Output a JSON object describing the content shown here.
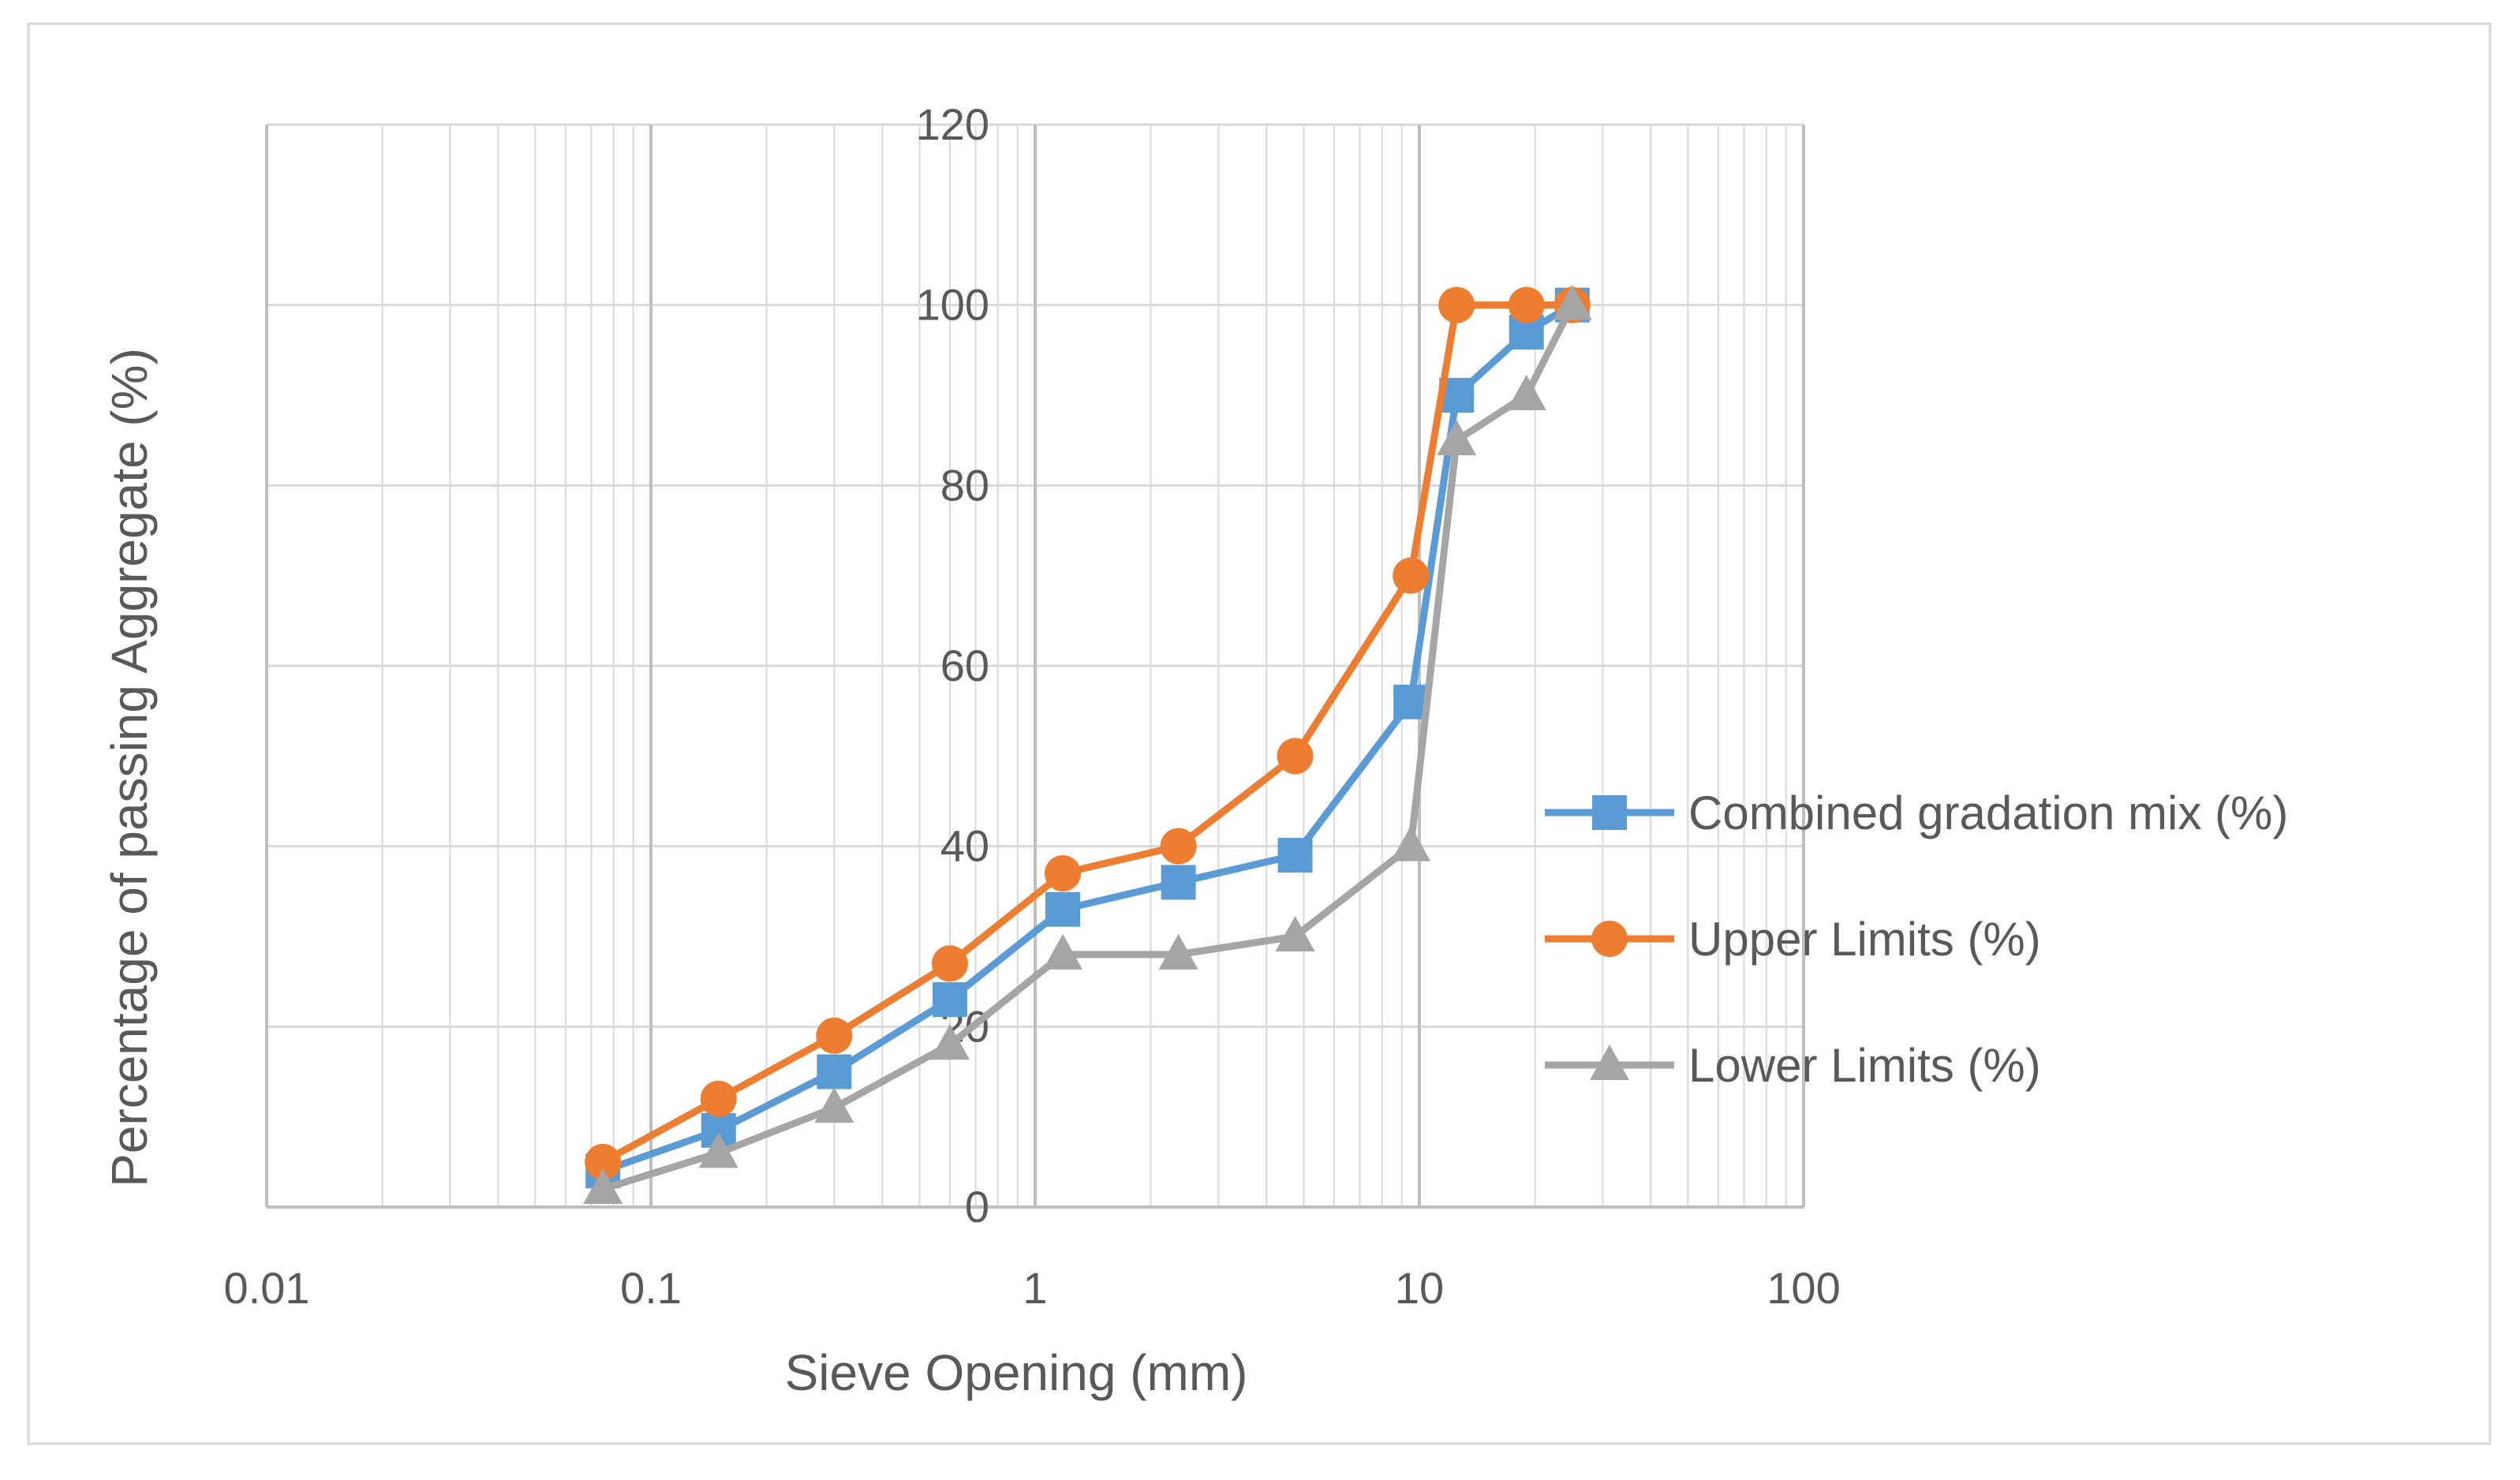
{
  "chart_data": {
    "type": "line",
    "xscale": "log",
    "title": "",
    "xlabel": "Sieve Opening (mm)",
    "ylabel": "Percentage of passing Aggregate (%)",
    "xlim": [
      0.01,
      100
    ],
    "ylim": [
      0,
      120
    ],
    "x_ticks": [
      "0.01",
      "0.1",
      "1",
      "10",
      "100"
    ],
    "y_ticks": [
      "0",
      "20",
      "40",
      "60",
      "80",
      "100",
      "120"
    ],
    "grid": true,
    "legend_position": "right",
    "x": [
      0.075,
      0.15,
      0.3,
      0.6,
      1.18,
      2.36,
      4.75,
      9.5,
      12.5,
      19,
      25
    ],
    "series": [
      {
        "name": "Combined gradation mix  (%)",
        "marker": "square",
        "color": "#5B9BD5",
        "values": [
          4,
          8.5,
          15,
          23,
          33,
          36,
          39,
          56,
          90,
          97,
          100
        ]
      },
      {
        "name": "Upper Limits (%)",
        "marker": "circle",
        "color": "#ED7D31",
        "values": [
          5,
          12,
          19,
          27,
          37,
          40,
          50,
          70,
          100,
          100,
          100
        ]
      },
      {
        "name": "Lower Limits (%)",
        "marker": "triangle",
        "color": "#A5A5A5",
        "values": [
          2,
          6,
          11,
          18,
          28,
          28,
          30,
          40,
          85,
          90,
          100
        ]
      }
    ],
    "colors": {
      "gridline": "#D9D9D9",
      "axis_major": "#BFBFBF",
      "border": "#D9D9D9",
      "text": "#595959"
    }
  }
}
